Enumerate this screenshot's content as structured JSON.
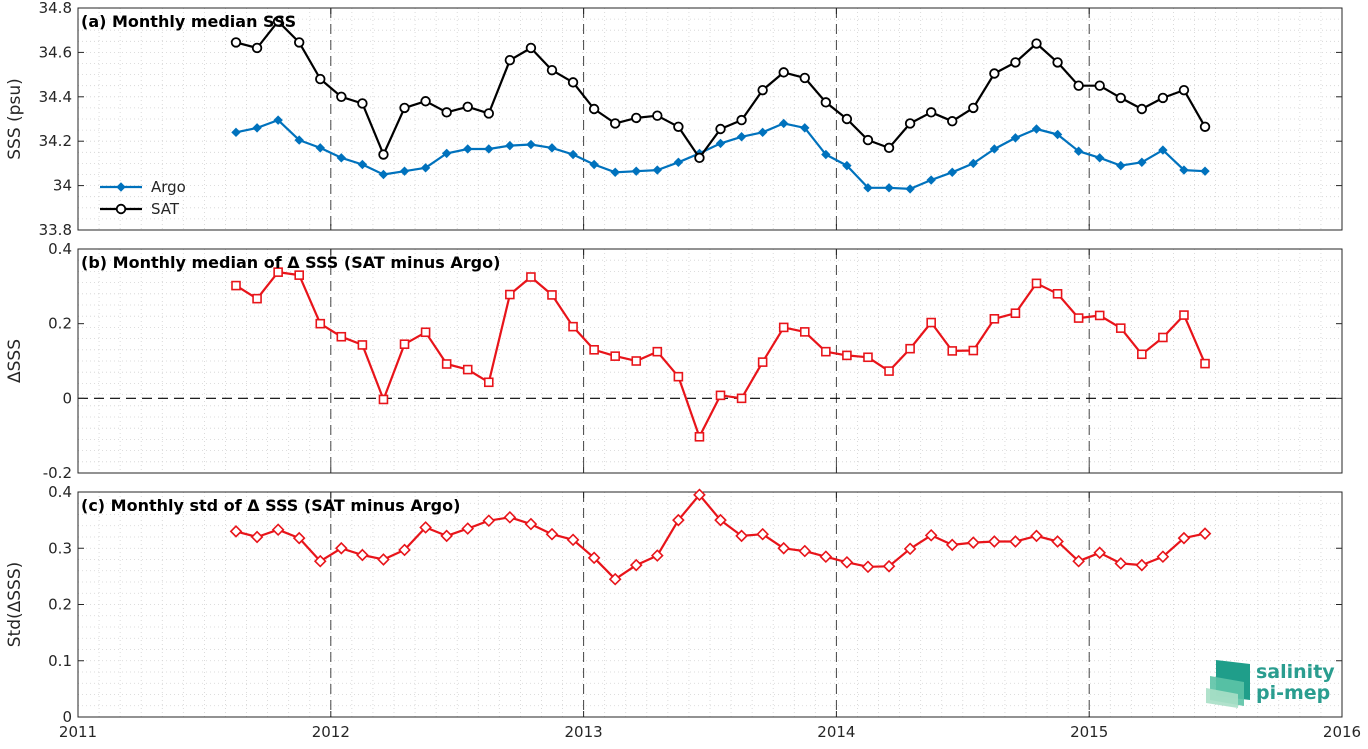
{
  "colors": {
    "argo": "#0072BD",
    "sat": "#000000",
    "diff": "#e8141a",
    "grid": "#c8c8c8",
    "logo": "#2a9d8f"
  },
  "logo": {
    "line1": "salinity",
    "line2": "pi-mep"
  },
  "chart_data": [
    {
      "type": "line",
      "title": "(a) Monthly median SSS",
      "ylabel": "SSS (psu)",
      "xlim": [
        2011,
        2016
      ],
      "ylim": [
        33.8,
        34.8
      ],
      "xticks": [
        "2011",
        "2012",
        "2013",
        "2014",
        "2015",
        "2016"
      ],
      "yticks": [
        "33.8",
        "34",
        "34.2",
        "34.4",
        "34.6",
        "34.8"
      ],
      "grid": true,
      "legend": "left",
      "x_start": 2011.625,
      "x_step": 0.08333,
      "series": [
        {
          "name": "Argo",
          "color_key": "argo",
          "marker": "diamond-filled",
          "values": [
            34.24,
            34.26,
            34.295,
            34.205,
            34.17,
            34.125,
            34.095,
            34.05,
            34.065,
            34.08,
            34.145,
            34.165,
            34.165,
            34.18,
            34.185,
            34.17,
            34.14,
            34.095,
            34.06,
            34.065,
            34.07,
            34.105,
            34.145,
            34.19,
            34.22,
            34.24,
            34.28,
            34.26,
            34.14,
            34.09,
            33.99,
            33.99,
            33.985,
            34.025,
            34.06,
            34.1,
            34.165,
            34.215,
            34.255,
            34.23,
            34.155,
            34.125,
            34.09,
            34.105,
            34.16,
            34.07,
            34.065
          ]
        },
        {
          "name": "SAT",
          "color_key": "sat",
          "marker": "circle-open",
          "values": [
            34.645,
            34.62,
            34.74,
            34.645,
            34.48,
            34.4,
            34.37,
            34.14,
            34.35,
            34.38,
            34.33,
            34.355,
            34.325,
            34.565,
            34.62,
            34.52,
            34.465,
            34.345,
            34.28,
            34.305,
            34.315,
            34.265,
            34.125,
            34.255,
            34.295,
            34.43,
            34.51,
            34.485,
            34.375,
            34.3,
            34.205,
            34.17,
            34.28,
            34.33,
            34.29,
            34.35,
            34.505,
            34.555,
            34.64,
            34.555,
            34.45,
            34.45,
            34.395,
            34.345,
            34.395,
            34.43,
            34.265
          ]
        }
      ]
    },
    {
      "type": "line",
      "title": "(b) Monthly median of Δ SSS (SAT minus Argo)",
      "ylabel": "ΔSSS",
      "xlim": [
        2011,
        2016
      ],
      "ylim": [
        -0.2,
        0.4
      ],
      "xticks": [
        "2011",
        "2012",
        "2013",
        "2014",
        "2015",
        "2016"
      ],
      "yticks": [
        "-0.2",
        "0",
        "0.2",
        "0.4"
      ],
      "grid": true,
      "zero_line": true,
      "x_start": 2011.625,
      "x_step": 0.08333,
      "series": [
        {
          "color_key": "diff",
          "marker": "square-open",
          "values": [
            0.302,
            0.267,
            0.338,
            0.33,
            0.2,
            0.165,
            0.143,
            -0.003,
            0.145,
            0.177,
            0.092,
            0.077,
            0.043,
            0.278,
            0.325,
            0.277,
            0.192,
            0.13,
            0.113,
            0.1,
            0.125,
            0.058,
            -0.103,
            0.008,
            0.0,
            0.097,
            0.19,
            0.178,
            0.125,
            0.115,
            0.11,
            0.073,
            0.133,
            0.203,
            0.127,
            0.128,
            0.213,
            0.228,
            0.308,
            0.28,
            0.215,
            0.222,
            0.188,
            0.118,
            0.163,
            0.223,
            0.093
          ]
        }
      ]
    },
    {
      "type": "line",
      "title": "(c) Monthly std of Δ SSS (SAT minus Argo)",
      "ylabel": "Std(ΔSSS)",
      "xlim": [
        2011,
        2016
      ],
      "ylim": [
        0,
        0.4
      ],
      "xticks": [
        "2011",
        "2012",
        "2013",
        "2014",
        "2015",
        "2016"
      ],
      "yticks": [
        "0",
        "0.1",
        "0.2",
        "0.3",
        "0.4"
      ],
      "grid": true,
      "x_start": 2011.625,
      "x_step": 0.08333,
      "series": [
        {
          "color_key": "diff",
          "marker": "diamond-open",
          "values": [
            0.33,
            0.32,
            0.333,
            0.318,
            0.277,
            0.3,
            0.288,
            0.28,
            0.297,
            0.337,
            0.322,
            0.335,
            0.349,
            0.355,
            0.343,
            0.325,
            0.315,
            0.283,
            0.245,
            0.27,
            0.287,
            0.35,
            0.395,
            0.35,
            0.322,
            0.325,
            0.3,
            0.295,
            0.285,
            0.275,
            0.267,
            0.268,
            0.299,
            0.323,
            0.306,
            0.31,
            0.312,
            0.312,
            0.322,
            0.312,
            0.277,
            0.292,
            0.273,
            0.27,
            0.285,
            0.318,
            0.326
          ]
        }
      ]
    }
  ]
}
